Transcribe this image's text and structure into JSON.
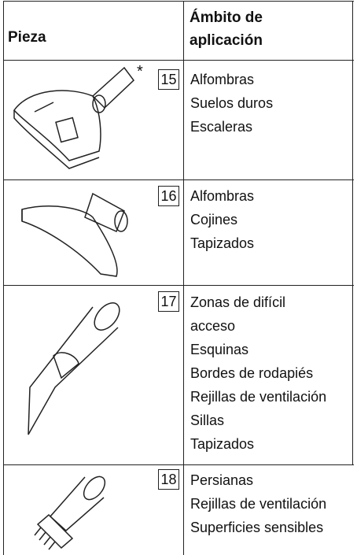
{
  "header": {
    "part": "Pieza",
    "application": "Ámbito de\naplicación"
  },
  "rows": [
    {
      "note": "*",
      "number": "15",
      "uses": [
        "Alfombras",
        "Suelos duros",
        "Escaleras"
      ]
    },
    {
      "number": "16",
      "uses": [
        "Alfombras",
        "Cojines",
        "Tapizados"
      ]
    },
    {
      "number": "17",
      "uses": [
        "Zonas de difícil\nacceso",
        "Esquinas",
        "Bordes de rodapiés",
        "Rejillas de ventilación",
        "Sillas",
        "Tapizados"
      ]
    },
    {
      "number": "18",
      "uses": [
        "Persianas",
        "Rejillas de ventilación",
        "Superficies sensibles"
      ]
    }
  ]
}
